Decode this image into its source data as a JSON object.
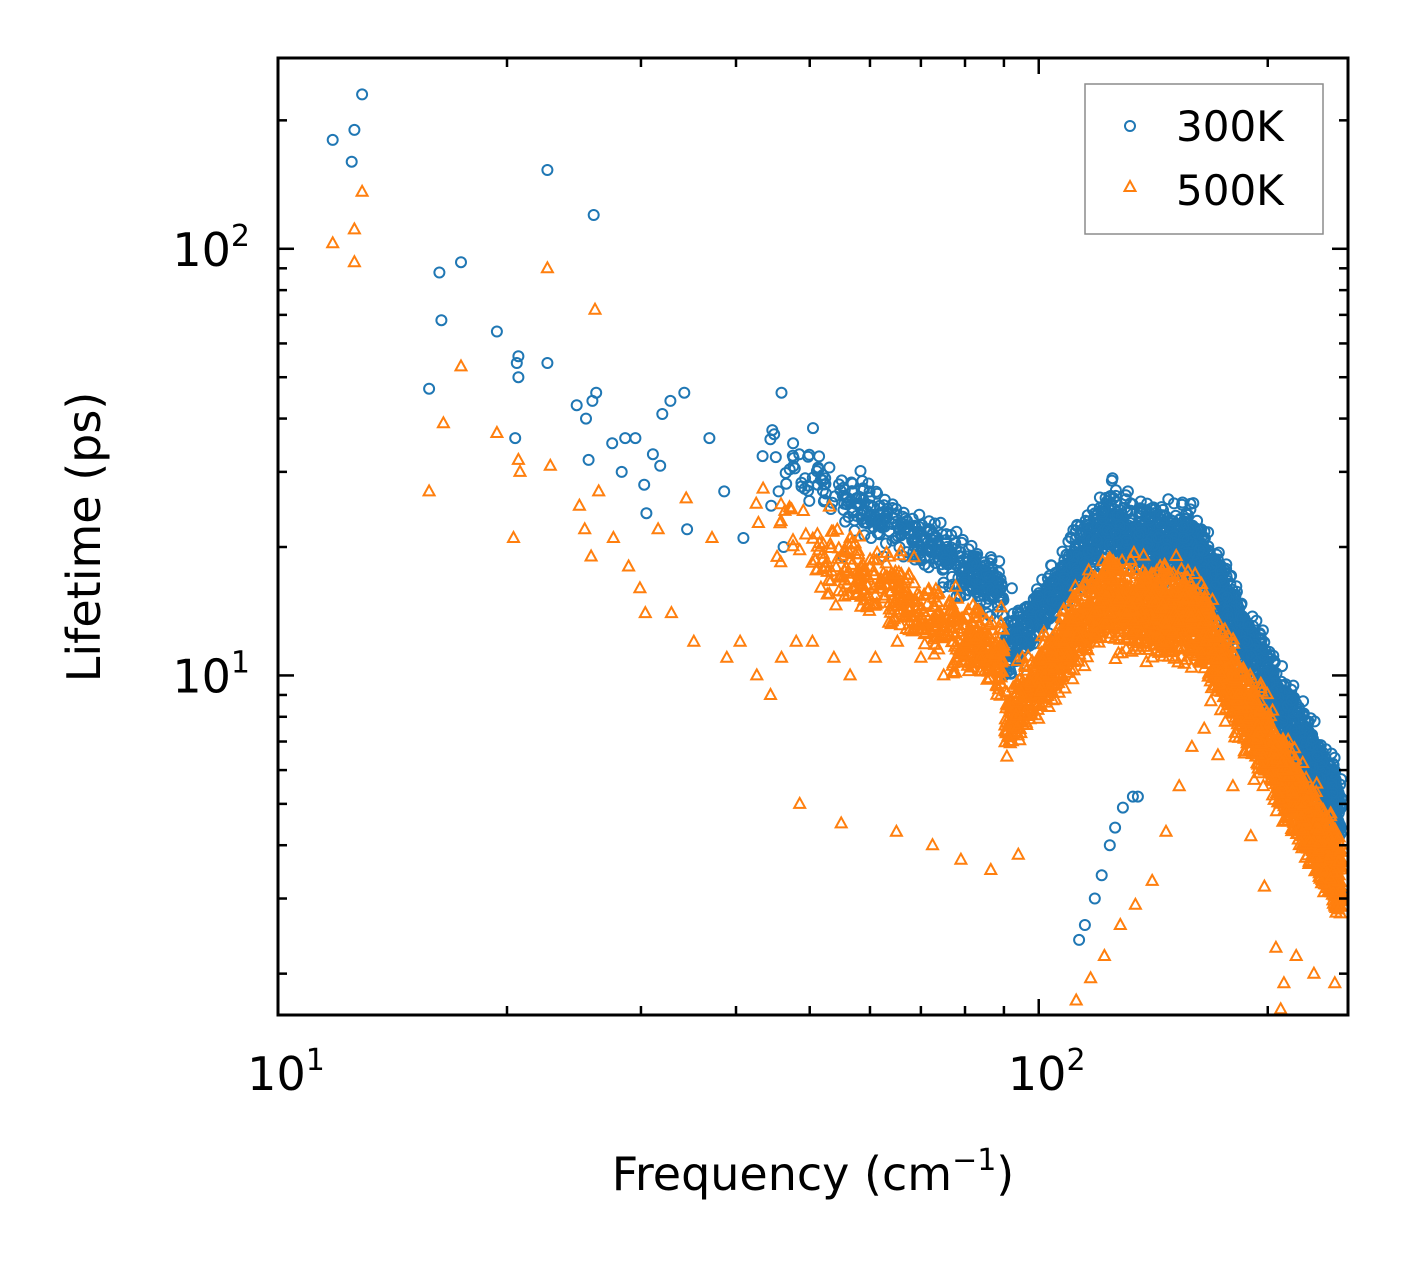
{
  "chart_data": {
    "type": "scatter",
    "title": "",
    "xlabel": "Frequency (cm",
    "xlabel_exponent": "−1",
    "xlabel_suffix": ")",
    "ylabel": "Lifetime (ps)",
    "xscale": "log",
    "yscale": "log",
    "xlim": [
      10,
      255
    ],
    "ylim": [
      1.6,
      280
    ],
    "x_ticks": [
      {
        "value": 10,
        "base": "10",
        "exp": "1"
      },
      {
        "value": 100,
        "base": "10",
        "exp": "2"
      }
    ],
    "y_ticks": [
      {
        "value": 10,
        "base": "10",
        "exp": "1"
      },
      {
        "value": 100,
        "base": "10",
        "exp": "2"
      }
    ],
    "legend_position": "top-right",
    "series": [
      {
        "name": "300K",
        "color": "#1f77b4",
        "marker": "circle",
        "points": [
          [
            11.8,
            180
          ],
          [
            12.5,
            160
          ],
          [
            12.6,
            190
          ],
          [
            12.9,
            230
          ],
          [
            16.3,
            88
          ],
          [
            16.4,
            68
          ],
          [
            17.4,
            93
          ],
          [
            15.8,
            47
          ],
          [
            19.4,
            64
          ],
          [
            20.6,
            54
          ],
          [
            20.7,
            56
          ],
          [
            20.7,
            50
          ],
          [
            20.5,
            36
          ],
          [
            22.6,
            153
          ],
          [
            22.6,
            54
          ],
          [
            24.7,
            43
          ],
          [
            25.4,
            40
          ],
          [
            25.6,
            32
          ],
          [
            25.9,
            44
          ],
          [
            26.2,
            46
          ],
          [
            26.0,
            120
          ],
          [
            27.5,
            35
          ],
          [
            28.3,
            30
          ],
          [
            28.6,
            36
          ],
          [
            29.5,
            36
          ],
          [
            30.3,
            28
          ],
          [
            30.5,
            24
          ],
          [
            31.1,
            33
          ],
          [
            31.8,
            31
          ],
          [
            32.0,
            41
          ],
          [
            32.8,
            44
          ],
          [
            34.2,
            46
          ],
          [
            34.5,
            22
          ],
          [
            36.9,
            36
          ],
          [
            38.6,
            27
          ],
          [
            40.9,
            21
          ],
          [
            44.5,
            25
          ],
          [
            45.5,
            27
          ],
          [
            45.9,
            46
          ],
          [
            46.2,
            20
          ],
          [
            49.3,
            29
          ],
          [
            50.5,
            38
          ],
          [
            51.2,
            28
          ],
          [
            52.4,
            29
          ],
          [
            55.3,
            19
          ],
          [
            60.2,
            21
          ],
          [
            62.5,
            19
          ],
          [
            66.4,
            19
          ],
          [
            72.1,
            20
          ],
          [
            80.5,
            19
          ],
          [
            86.0,
            16
          ],
          [
            92.2,
            16
          ],
          [
            113.0,
            2.4
          ],
          [
            115.0,
            2.6
          ],
          [
            118.5,
            3.0
          ],
          [
            121.0,
            3.4
          ],
          [
            124.0,
            4.0
          ],
          [
            126.0,
            4.4
          ],
          [
            129.0,
            4.9
          ],
          [
            133.0,
            5.2
          ],
          [
            135.0,
            5.2
          ],
          [
            125.0,
            29
          ],
          [
            131.0,
            27
          ],
          [
            140.0,
            24
          ],
          [
            155.0,
            21
          ],
          [
            190.0,
            8
          ],
          [
            205.0,
            6
          ],
          [
            215.0,
            5
          ],
          [
            232.0,
            4.5
          ],
          [
            244.0,
            3.6
          ],
          [
            250.0,
            3.1
          ]
        ]
      },
      {
        "name": "500K",
        "color": "#ff7f0e",
        "marker": "triangle",
        "points": [
          [
            11.8,
            103
          ],
          [
            12.6,
            111
          ],
          [
            12.6,
            93
          ],
          [
            12.9,
            136
          ],
          [
            15.8,
            27
          ],
          [
            16.5,
            39
          ],
          [
            17.4,
            53
          ],
          [
            19.4,
            37
          ],
          [
            20.4,
            21
          ],
          [
            20.7,
            32
          ],
          [
            20.8,
            30
          ],
          [
            22.6,
            90
          ],
          [
            22.8,
            31
          ],
          [
            24.9,
            25
          ],
          [
            25.3,
            22
          ],
          [
            25.8,
            19
          ],
          [
            26.1,
            72
          ],
          [
            26.4,
            27
          ],
          [
            27.6,
            21
          ],
          [
            28.9,
            18
          ],
          [
            29.9,
            16
          ],
          [
            30.4,
            14
          ],
          [
            31.6,
            22
          ],
          [
            32.9,
            14
          ],
          [
            34.4,
            26
          ],
          [
            35.2,
            12
          ],
          [
            37.2,
            21
          ],
          [
            38.9,
            11
          ],
          [
            40.5,
            12
          ],
          [
            42.6,
            10
          ],
          [
            44.4,
            9
          ],
          [
            45.9,
            11
          ],
          [
            48.0,
            12
          ],
          [
            50.4,
            12
          ],
          [
            53.8,
            11
          ],
          [
            56.5,
            10
          ],
          [
            61.0,
            11
          ],
          [
            65.2,
            12
          ],
          [
            70.0,
            11
          ],
          [
            75.0,
            10
          ],
          [
            48.5,
            5.0
          ],
          [
            55.0,
            4.5
          ],
          [
            65.0,
            4.3
          ],
          [
            72.5,
            4.0
          ],
          [
            79.0,
            3.7
          ],
          [
            86.5,
            3.5
          ],
          [
            94.0,
            3.8
          ],
          [
            112.0,
            1.73
          ],
          [
            117.0,
            1.95
          ],
          [
            122.0,
            2.2
          ],
          [
            128.0,
            2.6
          ],
          [
            134.0,
            2.9
          ],
          [
            141.0,
            3.3
          ],
          [
            147.0,
            4.3
          ],
          [
            153.0,
            5.5
          ],
          [
            159.0,
            6.8
          ],
          [
            165.0,
            7.5
          ],
          [
            172.0,
            6.5
          ],
          [
            180.0,
            5.5
          ],
          [
            190.0,
            4.2
          ],
          [
            198.0,
            3.2
          ],
          [
            205.0,
            2.3
          ],
          [
            210.0,
            1.9
          ],
          [
            218.0,
            2.2
          ],
          [
            230.0,
            2.0
          ],
          [
            245.0,
            1.9
          ],
          [
            208.0,
            1.65
          ]
        ]
      }
    ]
  }
}
